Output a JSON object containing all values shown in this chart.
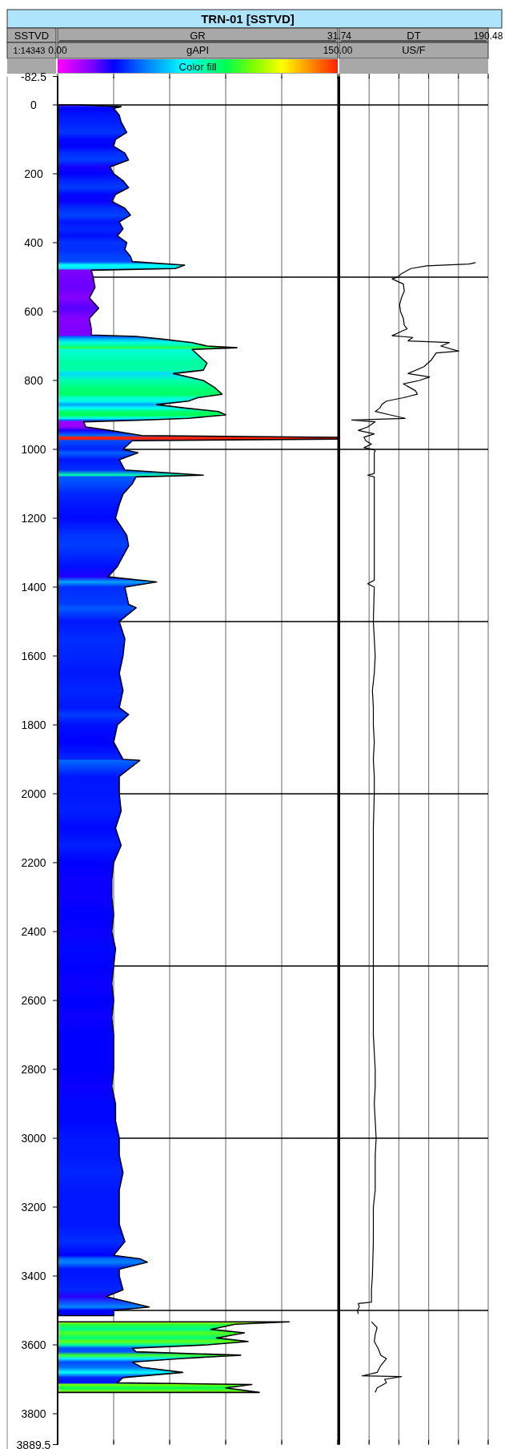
{
  "chart_data": [
    {
      "type": "area",
      "orientation": "horizontal",
      "title": "TRN-01 [SSTVD]",
      "xlabel": "GR",
      "ylabel": "SSTVD",
      "annotations": [
        "1:14343",
        "gAPI"
      ],
      "clabel": "Color fill",
      "xlim": [
        0,
        150
      ],
      "xticks": [
        {
          "value": 0,
          "label": "0.00"
        },
        {
          "value": 30,
          "label": null
        },
        {
          "value": 60,
          "label": null
        },
        {
          "value": 90,
          "label": null
        },
        {
          "value": 120,
          "label": null
        },
        {
          "value": 150,
          "label": "150.00"
        }
      ],
      "ylim": [
        3889.5,
        -82.5
      ],
      "yticks": [
        -82.5,
        0,
        200,
        400,
        600,
        800,
        1000,
        1200,
        1400,
        1600,
        1800,
        2000,
        2200,
        2400,
        2600,
        2800,
        3000,
        3200,
        3400,
        3600,
        3800,
        3889.5
      ],
      "grid": "x",
      "ref_lines": [
        {
          "axis": "y",
          "value": 0
        },
        {
          "axis": "y",
          "value": 500
        },
        {
          "axis": "y",
          "value": 1000
        },
        {
          "axis": "y",
          "value": 1500
        },
        {
          "axis": "y",
          "value": 2000
        },
        {
          "axis": "y",
          "value": 2500
        },
        {
          "axis": "y",
          "value": 3000
        },
        {
          "axis": "y",
          "value": 3500
        }
      ],
      "series": [
        {
          "color": "#000000",
          "values": [
            12,
            34,
            30,
            33,
            34,
            37,
            31,
            30,
            36,
            38,
            28,
            30,
            35,
            38,
            31,
            29,
            36,
            39,
            33,
            35,
            32,
            37,
            36,
            39,
            40,
            68,
            63,
            18,
            19,
            20,
            17,
            22,
            17,
            18,
            18,
            42,
            56,
            72,
            80,
            96,
            72,
            76,
            80,
            78,
            62,
            78,
            84,
            88,
            75,
            70,
            53,
            68,
            86,
            90,
            70,
            45,
            14,
            15,
            28,
            45,
            150,
            150,
            40,
            38,
            35,
            43,
            33,
            36,
            78,
            42,
            40,
            35,
            33,
            31,
            37,
            38,
            36,
            32,
            27,
            53,
            36,
            38,
            42,
            33,
            36,
            35,
            33,
            35,
            33,
            38,
            32,
            30,
            35,
            44,
            33,
            33,
            34,
            31,
            34,
            30,
            29,
            29,
            30,
            29,
            31,
            30,
            29,
            30,
            29,
            30,
            30,
            30,
            29,
            31,
            31,
            33,
            33,
            35,
            33,
            33,
            33,
            36,
            30,
            44,
            48,
            33,
            33,
            35,
            26,
            49,
            30,
            30,
            null,
            124,
            95,
            82,
            100,
            85,
            102,
            80,
            40,
            42,
            98,
            65,
            40,
            45,
            67,
            35,
            32,
            104,
            90,
            108
          ],
          "x": [
            0,
            5,
            10,
            30,
            50,
            80,
            100,
            120,
            140,
            160,
            180,
            200,
            220,
            240,
            260,
            280,
            300,
            320,
            340,
            360,
            380,
            400,
            420,
            440,
            455,
            465,
            475,
            480,
            500,
            530,
            560,
            590,
            620,
            650,
            668,
            672,
            680,
            690,
            700,
            705,
            710,
            730,
            750,
            770,
            780,
            800,
            820,
            840,
            850,
            860,
            870,
            880,
            890,
            900,
            910,
            915,
            920,
            935,
            945,
            960,
            965,
            970,
            975,
            985,
            1000,
            1010,
            1030,
            1060,
            1075,
            1080,
            1100,
            1130,
            1160,
            1200,
            1250,
            1280,
            1300,
            1340,
            1370,
            1385,
            1400,
            1450,
            1460,
            1500,
            1550,
            1600,
            1650,
            1700,
            1750,
            1770,
            1800,
            1850,
            1900,
            1903,
            1950,
            2000,
            2050,
            2100,
            2150,
            2200,
            2250,
            2300,
            2350,
            2400,
            2450,
            2500,
            2550,
            2600,
            2650,
            2700,
            2750,
            2800,
            2850,
            2900,
            2950,
            3000,
            3050,
            3100,
            3150,
            3200,
            3250,
            3300,
            3340,
            3350,
            3360,
            3380,
            3400,
            3440,
            3460,
            3490,
            3500,
            3515,
            3525,
            3533,
            3540,
            3555,
            3565,
            3580,
            3590,
            3600,
            3610,
            3620,
            3630,
            3640,
            3650,
            3665,
            3680,
            3695,
            3710,
            3715,
            3725,
            3738
          ]
        }
      ]
    },
    {
      "type": "line",
      "orientation": "horizontal",
      "xlabel": "DT",
      "annotations": [
        "US/F"
      ],
      "tick_labels": "x",
      "xlim": [
        31.74,
        190.48
      ],
      "xticks": [
        {
          "value": 31.74,
          "label": "31.74"
        },
        {
          "value": 63.49,
          "label": null
        },
        {
          "value": 95.23,
          "label": null
        },
        {
          "value": 126.98,
          "label": null
        },
        {
          "value": 158.73,
          "label": null
        },
        {
          "value": 190.48,
          "label": "190.48"
        }
      ],
      "ylim": [
        3889.5,
        -82.5
      ],
      "grid": "x",
      "ref_lines": [
        {
          "axis": "y",
          "value": 0
        },
        {
          "axis": "y",
          "value": 500
        },
        {
          "axis": "y",
          "value": 1000
        },
        {
          "axis": "y",
          "value": 1500
        },
        {
          "axis": "y",
          "value": 2000
        },
        {
          "axis": "y",
          "value": 2500
        },
        {
          "axis": "y",
          "value": 3000
        },
        {
          "axis": "y",
          "value": 3500
        }
      ],
      "series": [
        {
          "color": "#000000",
          "values": [
            177,
            170,
            125,
            108,
            98,
            94,
            88,
            100,
            101,
            98,
            96,
            97,
            100,
            101,
            104,
            96,
            88,
            110,
            105,
            149,
            140,
            159,
            135,
            130,
            122,
            105,
            128,
            117,
            100,
            113,
            115,
            100,
            82,
            77,
            75,
            70,
            86,
            102,
            45,
            70,
            62,
            52,
            69,
            58,
            60,
            66,
            58,
            68,
            70,
            69,
            69,
            62,
            69,
            69,
            62,
            69,
            68,
            69,
            70,
            69,
            67,
            68,
            68,
            69,
            68,
            69,
            69,
            68,
            68,
            68,
            68,
            68,
            70,
            70,
            69,
            70,
            71,
            70,
            70,
            70,
            68,
            68,
            67,
            66,
            66,
            52,
            53,
            51,
            52,
            null,
            66,
            72,
            70,
            69,
            73,
            76,
            82,
            76,
            72,
            56,
            98,
            80,
            82,
            72,
            70
          ],
          "x": [
            458,
            462,
            467,
            475,
            490,
            500,
            505,
            520,
            540,
            560,
            580,
            600,
            620,
            640,
            650,
            660,
            670,
            675,
            685,
            690,
            700,
            715,
            720,
            740,
            760,
            780,
            790,
            800,
            810,
            830,
            840,
            850,
            860,
            870,
            880,
            890,
            900,
            910,
            915,
            920,
            935,
            945,
            955,
            965,
            975,
            985,
            995,
            1000,
            1005,
            1010,
            1070,
            1075,
            1080,
            1380,
            1390,
            1400,
            1500,
            1550,
            1600,
            1650,
            1700,
            1750,
            1800,
            1850,
            1900,
            1950,
            2000,
            2100,
            2200,
            2400,
            2600,
            2700,
            2800,
            2850,
            2900,
            2950,
            3000,
            3050,
            3100,
            3150,
            3200,
            3300,
            3400,
            3440,
            3476,
            3480,
            3490,
            3500,
            3510,
            3525,
            3533,
            3550,
            3570,
            3590,
            3610,
            3630,
            3640,
            3660,
            3680,
            3690,
            3692,
            3700,
            3710,
            3725,
            3738
          ]
        }
      ]
    }
  ]
}
